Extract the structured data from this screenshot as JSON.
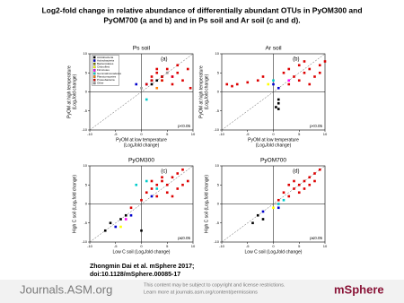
{
  "title": [
    "Log2-fold change in relative abundance of differentially abundant OTUs in PyOM300 and",
    "PyOM700 (a and b) and in Ps soil and Ar soil (c and d)."
  ],
  "citation": [
    "Zhongmin Dai et al. mSphere 2017;",
    "doi:10.1128/mSphere.00085-17"
  ],
  "footer": {
    "brand": "Journals.ASM.org",
    "notice": [
      "This content may be subject to copyright and license restrictions.",
      "Learn more at journals.asm.org/content/permissions"
    ],
    "logo": "mSphere"
  },
  "chart_data": [
    {
      "type": "scatter",
      "title": "Ps soil",
      "letter": "(a)",
      "note": "p<0.05",
      "xlabel": [
        "PyOM at low temperature",
        "(Log₂fold change)"
      ],
      "ylabel": [
        "PyOM at high temperature",
        "(Log₂fold change)"
      ],
      "xlim": [
        -10,
        10
      ],
      "ylim": [
        -10,
        10
      ],
      "xticks": [
        -10,
        -5,
        0,
        5,
        10
      ],
      "yticks": [
        -10,
        -5,
        0,
        5,
        10
      ],
      "series": [
        {
          "name": "Acidobacteria",
          "color": "#000000",
          "x": [
            3,
            4,
            2
          ],
          "y": [
            3,
            4,
            2
          ]
        },
        {
          "name": "Actinobacteria",
          "color": "#0000cc",
          "x": [
            1,
            2,
            -1
          ],
          "y": [
            2,
            3,
            2
          ]
        },
        {
          "name": "Bacteroidetes",
          "color": "#808000",
          "x": [
            2
          ],
          "y": [
            3
          ]
        },
        {
          "name": "Chloroflexi",
          "color": "#ffff00",
          "x": [
            4
          ],
          "y": [
            3
          ]
        },
        {
          "name": "Firmicutes",
          "color": "#ff00ff",
          "x": [
            6
          ],
          "y": [
            4
          ]
        },
        {
          "name": "Gemmatimonadetes",
          "color": "#00cccc",
          "x": [
            1
          ],
          "y": [
            -2
          ]
        },
        {
          "name": "Planctomycetes",
          "color": "#ff8000",
          "x": [
            3
          ],
          "y": [
            1
          ]
        },
        {
          "name": "Proteobacteria",
          "color": "#dd0000",
          "x": [
            2,
            3,
            4,
            5,
            6,
            7,
            8,
            9,
            6,
            4,
            3,
            5,
            7,
            1,
            2,
            9.5
          ],
          "y": [
            4,
            5,
            3,
            6,
            4,
            5,
            3,
            6,
            2,
            4,
            6,
            5,
            7,
            2,
            3,
            1
          ]
        },
        {
          "name": "Other",
          "color": "#999999",
          "x": [
            5,
            0
          ],
          "y": [
            5,
            1
          ]
        }
      ]
    },
    {
      "type": "scatter",
      "title": "Ar soil",
      "letter": "(b)",
      "note": "p<0.05",
      "xlabel": [
        "PyOM at low temperature",
        "(Log₂fold change)"
      ],
      "ylabel": [
        "PyOM at high temperature",
        "(Log₂fold change)"
      ],
      "xlim": [
        -10,
        10
      ],
      "ylim": [
        -10,
        10
      ],
      "xticks": [
        -10,
        -5,
        0,
        5,
        10
      ],
      "yticks": [
        -10,
        -5,
        0,
        5,
        10
      ],
      "series": [
        {
          "color": "#dd0000",
          "x": [
            -9,
            -8,
            -7,
            -5,
            -3,
            -2,
            2,
            3,
            4,
            5,
            6,
            7,
            8,
            9,
            10,
            5,
            3,
            7,
            9,
            6
          ],
          "y": [
            2,
            1.5,
            2,
            2.5,
            3,
            4,
            5,
            6,
            4,
            7,
            5,
            6,
            4,
            7,
            8,
            3,
            2,
            2,
            5,
            8
          ]
        },
        {
          "color": "#000000",
          "x": [
            1,
            1,
            0.5,
            1
          ],
          "y": [
            -2,
            -3,
            -4,
            -4.5
          ]
        },
        {
          "color": "#0000cc",
          "x": [
            0,
            1
          ],
          "y": [
            2,
            1
          ]
        },
        {
          "color": "#ffff00",
          "x": [
            -1
          ],
          "y": [
            2
          ]
        },
        {
          "color": "#00cccc",
          "x": [
            0
          ],
          "y": [
            3
          ]
        },
        {
          "color": "#ff00ff",
          "x": [
            3
          ],
          "y": [
            3
          ]
        }
      ]
    },
    {
      "type": "scatter",
      "title": "PyOM300",
      "letter": "(c)",
      "note": "p≤0.05",
      "xlabel": [
        "Low C soil (Log₂fold change)"
      ],
      "ylabel": [
        "High C soil (Log₂fold change)"
      ],
      "xlim": [
        -10,
        10
      ],
      "ylim": [
        -10,
        10
      ],
      "xticks": [
        -10,
        -5,
        0,
        5,
        10
      ],
      "yticks": [
        -10,
        -5,
        0,
        5,
        10
      ],
      "series": [
        {
          "color": "#dd0000",
          "x": [
            -2,
            0,
            1,
            2,
            3,
            4,
            5,
            6,
            7,
            8,
            9,
            3,
            5,
            6,
            4,
            7,
            2,
            8
          ],
          "y": [
            -1,
            1,
            3,
            4,
            2,
            6,
            5,
            7,
            8,
            9,
            6,
            5,
            3,
            2,
            7,
            4,
            6,
            5
          ]
        },
        {
          "color": "#000000",
          "x": [
            -7,
            -4,
            -3,
            -6,
            0
          ],
          "y": [
            -7,
            -4,
            -3,
            -5,
            -7
          ]
        },
        {
          "color": "#0000cc",
          "x": [
            -5,
            -2,
            2
          ],
          "y": [
            -6,
            -3,
            2
          ]
        },
        {
          "color": "#00cccc",
          "x": [
            1,
            -1,
            3
          ],
          "y": [
            6,
            5,
            4
          ]
        },
        {
          "color": "#ffff00",
          "x": [
            -4
          ],
          "y": [
            -6
          ]
        },
        {
          "color": "#ff00ff",
          "x": [
            -3
          ],
          "y": [
            -4
          ]
        }
      ]
    },
    {
      "type": "scatter",
      "title": "PyOM700",
      "letter": "(d)",
      "note": "p≤0.05",
      "xlabel": [
        "Low C soil (Log₂fold change)"
      ],
      "ylabel": [
        "High C soil (Log₂fold change)"
      ],
      "xlim": [
        -10,
        10
      ],
      "ylim": [
        -10,
        10
      ],
      "xticks": [
        -10,
        -5,
        0,
        5,
        10
      ],
      "yticks": [
        -10,
        -5,
        0,
        5,
        10
      ],
      "series": [
        {
          "color": "#dd0000",
          "x": [
            1,
            2,
            3,
            4,
            5,
            6,
            7,
            8,
            9,
            5,
            6,
            7,
            4,
            3,
            8
          ],
          "y": [
            1,
            3,
            2,
            4,
            5,
            6,
            7,
            8,
            9,
            3,
            4,
            5,
            6,
            5,
            6
          ]
        },
        {
          "color": "#000000",
          "x": [
            -3,
            -2,
            -4
          ],
          "y": [
            -3,
            -4,
            -5
          ]
        },
        {
          "color": "#0000cc",
          "x": [
            -2,
            1
          ],
          "y": [
            -2,
            -1
          ]
        },
        {
          "color": "#00cccc",
          "x": [
            2,
            1
          ],
          "y": [
            1,
            0
          ]
        },
        {
          "color": "#ffff00",
          "x": [
            0
          ],
          "y": [
            -1
          ]
        }
      ]
    }
  ]
}
